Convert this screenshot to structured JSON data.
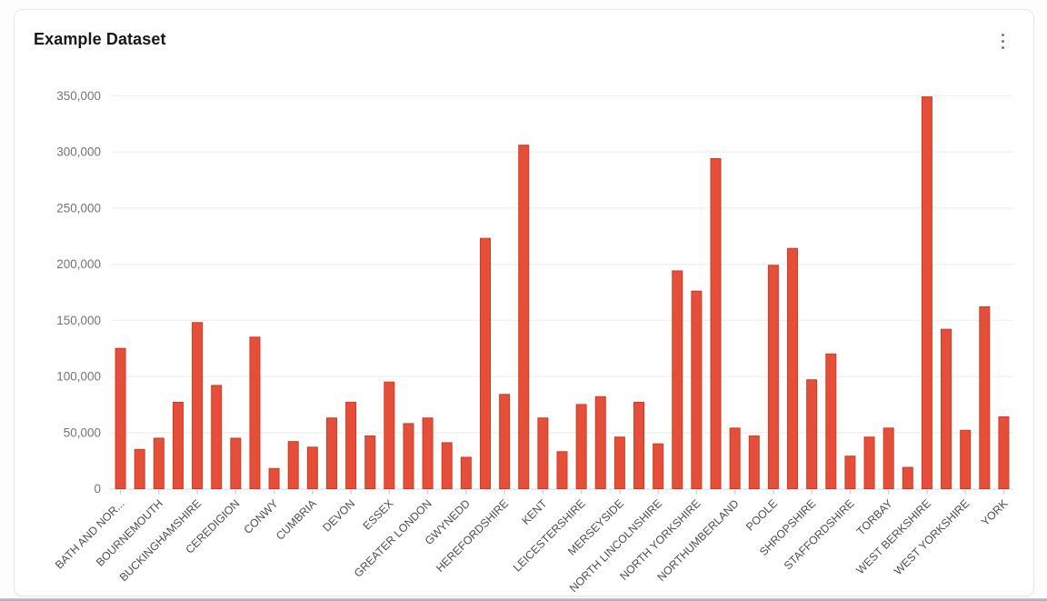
{
  "card": {
    "title": "Example Dataset",
    "menu_icon": "kebab-menu"
  },
  "ui_colors": {
    "card_border": "#e7e8ea",
    "title": "#17181a",
    "menu_dots": "#7d7d7d",
    "grid_line": "#f0f0f1",
    "axis_line": "#dfe3ec",
    "tick_mark": "#c7d0e6",
    "y_label": "#757575",
    "x_label": "#4e4e4e"
  },
  "chart_data": {
    "type": "bar",
    "title": "Example Dataset",
    "xlabel": "",
    "ylabel": "",
    "ylim": [
      0,
      350000
    ],
    "y_tick_step": 50000,
    "y_tick_labels": [
      "0",
      "50,000",
      "100,000",
      "150,000",
      "200,000",
      "250,000",
      "300,000",
      "350,000"
    ],
    "grid": true,
    "legend": false,
    "x_label_rotation_deg": 45,
    "x_label_interval": 2,
    "bar_color": "#e54e39",
    "bar_border_color": "#d23a24",
    "categories": [
      "BATH AND NOR...",
      "",
      "BOURNEMOUTH",
      "",
      "BUCKINGHAMSHIRE",
      "",
      "CEREDIGION",
      "",
      "CONWY",
      "",
      "CUMBRIA",
      "",
      "DEVON",
      "",
      "ESSEX",
      "",
      "GREATER LONDON",
      "",
      "GWYNEDD",
      "",
      "HEREFORDSHIRE",
      "",
      "KENT",
      "",
      "LEICESTERSHIRE",
      "",
      "MERSEYSIDE",
      "",
      "NORTH LINCOLNSHIRE",
      "",
      "NORTH YORKSHIRE",
      "",
      "NORTHUMBERLAND",
      "",
      "POOLE",
      "",
      "SHROPSHIRE",
      "",
      "STAFFORDSHIRE",
      "",
      "TORBAY",
      "",
      "WEST BERKSHIRE",
      "",
      "WEST YORKSHIRE",
      "",
      "YORK"
    ],
    "values": [
      125000,
      35000,
      45000,
      77000,
      148000,
      92000,
      45000,
      135000,
      18000,
      42000,
      37000,
      63000,
      77000,
      47000,
      95000,
      58000,
      63000,
      41000,
      28000,
      223000,
      84000,
      306000,
      63000,
      33000,
      75000,
      82000,
      46000,
      77000,
      40000,
      194000,
      176000,
      294000,
      54000,
      47000,
      199000,
      214000,
      97000,
      120000,
      29000,
      46000,
      54000,
      19000,
      349000,
      142000,
      52000,
      162000,
      64000
    ]
  }
}
